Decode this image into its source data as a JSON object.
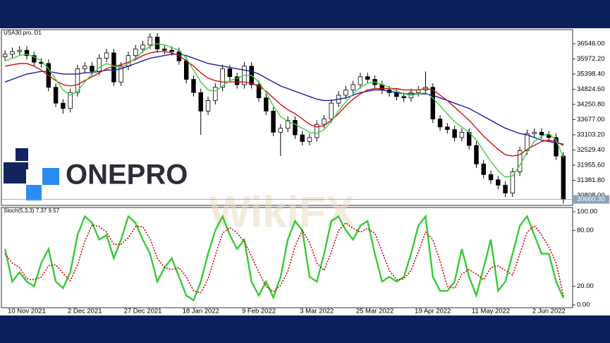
{
  "brand": {
    "logo_text": "ONEPRO",
    "watermark": "WikiFX"
  },
  "chart_data": [
    {
      "type": "candlestick",
      "title": "USA30.pro, D1",
      "up_color": "#ffffff",
      "down_color": "#000000",
      "open": [
        36050,
        36150,
        36250,
        36300,
        36100,
        35850,
        35800,
        34900,
        34300,
        34100,
        34700,
        35600,
        35700,
        35500,
        36000,
        36200,
        35100,
        35700,
        36100,
        36350,
        36500,
        36800,
        36350,
        36300,
        36250,
        35900,
        35200,
        34700,
        34000,
        34400,
        34900,
        35600,
        35300,
        35000,
        35700,
        35000,
        34500,
        34000,
        33200,
        33350,
        33650,
        33100,
        32850,
        33000,
        33500,
        33700,
        34300,
        34600,
        34800,
        35000,
        35300,
        35200,
        35000,
        34800,
        34700,
        34550,
        34500,
        34700,
        34800,
        34900,
        33700,
        33400,
        33300,
        33000,
        33200,
        32700,
        32000,
        31600,
        31400,
        31200,
        30900,
        31700,
        32500,
        33150,
        33200,
        33100,
        33000,
        32300
      ],
      "high": [
        36300,
        36400,
        36450,
        36450,
        36250,
        36000,
        35950,
        35050,
        34450,
        34850,
        35750,
        35850,
        35850,
        36150,
        36350,
        36350,
        35850,
        36250,
        36500,
        36650,
        36950,
        36950,
        36500,
        36450,
        36400,
        36050,
        35350,
        34850,
        34550,
        35050,
        35750,
        35750,
        35450,
        35850,
        35850,
        35150,
        34650,
        34150,
        33500,
        33800,
        33800,
        33250,
        33150,
        33650,
        33850,
        34450,
        34750,
        34950,
        35150,
        35450,
        35450,
        35350,
        35150,
        34950,
        34850,
        34700,
        34850,
        34950,
        35500,
        35050,
        33850,
        33550,
        33450,
        33350,
        33350,
        32850,
        32150,
        31750,
        31550,
        31350,
        31850,
        32650,
        33300,
        33350,
        33350,
        33250,
        33150,
        32450
      ],
      "low": [
        35900,
        36000,
        36100,
        35950,
        35700,
        35650,
        34750,
        34150,
        33900,
        33950,
        34550,
        35450,
        35350,
        35350,
        35850,
        34950,
        34950,
        35550,
        35950,
        36200,
        36350,
        36200,
        36150,
        36100,
        35750,
        35050,
        34550,
        33100,
        33850,
        34250,
        34750,
        35150,
        34850,
        34850,
        34850,
        34350,
        33850,
        33050,
        32300,
        33200,
        32950,
        32700,
        32700,
        32850,
        33350,
        33550,
        34150,
        34450,
        34650,
        34850,
        35050,
        34850,
        34650,
        34550,
        34400,
        34350,
        34350,
        34550,
        34650,
        33550,
        33250,
        33150,
        32850,
        32850,
        32550,
        31850,
        31450,
        31250,
        31050,
        30750,
        30750,
        31550,
        32350,
        33000,
        32950,
        32850,
        32150,
        30500
      ],
      "close": [
        36150,
        36250,
        36300,
        36100,
        35850,
        35800,
        34900,
        34300,
        34100,
        34700,
        35600,
        35700,
        35500,
        36000,
        36200,
        35100,
        35700,
        36100,
        36350,
        36500,
        36800,
        36350,
        36300,
        36250,
        35900,
        35200,
        34700,
        34000,
        34400,
        34900,
        35600,
        35300,
        35000,
        35700,
        35000,
        34500,
        34000,
        33200,
        33350,
        33650,
        33100,
        32850,
        33000,
        33500,
        33700,
        34300,
        34600,
        34800,
        35000,
        35300,
        35200,
        35000,
        34800,
        34700,
        34550,
        34500,
        34700,
        34800,
        34900,
        33700,
        33400,
        33300,
        33000,
        33200,
        32700,
        32000,
        31600,
        31400,
        31200,
        30900,
        31700,
        32500,
        33150,
        33200,
        33100,
        33000,
        32300,
        30660
      ],
      "series": [
        {
          "color": "#1a1aa6",
          "values": [
            35100,
            35200,
            35300,
            35400,
            35450,
            35500,
            35500,
            35450,
            35400,
            35400,
            35400,
            35450,
            35450,
            35500,
            35550,
            35550,
            35600,
            35700,
            35800,
            35900,
            36000,
            36050,
            36100,
            36150,
            36150,
            36100,
            36000,
            35900,
            35800,
            35750,
            35700,
            35650,
            35600,
            35550,
            35500,
            35400,
            35250,
            35100,
            34950,
            34850,
            34750,
            34650,
            34550,
            34450,
            34400,
            34400,
            34450,
            34500,
            34600,
            34700,
            34750,
            34800,
            34800,
            34750,
            34700,
            34650,
            34650,
            34650,
            34650,
            34600,
            34500,
            34400,
            34300,
            34200,
            34100,
            33950,
            33800,
            33650,
            33500,
            33350,
            33250,
            33150,
            33100,
            33000,
            32900,
            32850,
            32800,
            32750
          ]
        },
        {
          "color": "#d01010",
          "values": [
            35700,
            35750,
            35800,
            35800,
            35700,
            35550,
            35350,
            35150,
            35000,
            34950,
            35000,
            35150,
            35300,
            35450,
            35600,
            35700,
            35750,
            35850,
            35950,
            36100,
            36200,
            36250,
            36250,
            36200,
            36100,
            35900,
            35700,
            35450,
            35250,
            35150,
            35100,
            35100,
            35100,
            35100,
            35050,
            34950,
            34750,
            34500,
            34250,
            34050,
            33900,
            33700,
            33500,
            33400,
            33450,
            33650,
            33900,
            34200,
            34450,
            34650,
            34800,
            34850,
            34850,
            34850,
            34850,
            34800,
            34800,
            34800,
            34850,
            34800,
            34600,
            34400,
            34150,
            33900,
            33650,
            33350,
            33050,
            32800,
            32550,
            32350,
            32300,
            32350,
            32550,
            32700,
            32850,
            32900,
            32850,
            32700
          ]
        },
        {
          "color": "#44cc44",
          "values": [
            35900,
            36000,
            36100,
            36150,
            36050,
            35900,
            35600,
            35200,
            34800,
            34600,
            34750,
            35100,
            35400,
            35650,
            35800,
            35700,
            35650,
            35800,
            36000,
            36250,
            36450,
            36550,
            36500,
            36400,
            36300,
            36000,
            35550,
            35100,
            34800,
            34750,
            34950,
            35150,
            35250,
            35350,
            35350,
            35100,
            34700,
            34200,
            33800,
            33600,
            33500,
            33350,
            33200,
            33150,
            33300,
            33600,
            34000,
            34350,
            34650,
            34900,
            35050,
            35100,
            35000,
            34900,
            34750,
            34650,
            34600,
            34650,
            34700,
            34500,
            34200,
            33900,
            33600,
            33400,
            33200,
            32900,
            32500,
            32100,
            31750,
            31500,
            31550,
            31950,
            32450,
            32850,
            33050,
            33150,
            32900,
            32250
          ]
        }
      ],
      "ylim": [
        30434,
        37080
      ],
      "yticks": [
        {
          "value": 36546,
          "label": "36546.00"
        },
        {
          "value": 35972.2,
          "label": "35972.20"
        },
        {
          "value": 35398.4,
          "label": "35398.40"
        },
        {
          "value": 34824.6,
          "label": "34824.60"
        },
        {
          "value": 34250.8,
          "label": "34250.80"
        },
        {
          "value": 33677,
          "label": "33677.00"
        },
        {
          "value": 33103.2,
          "label": "33103.20"
        },
        {
          "value": 32529.4,
          "label": "32529.40"
        },
        {
          "value": 31955.6,
          "label": "31955.60"
        },
        {
          "value": 31381.8,
          "label": "31381.80"
        },
        {
          "value": 30808,
          "label": "30808.00"
        }
      ],
      "last_price": {
        "value": 30660.3,
        "label": "30660.30"
      }
    },
    {
      "type": "line",
      "title": "Stoch(5,3,3) 7.37 9.57",
      "categories": [
        null,
        null,
        null,
        "10 Nov 2021",
        null,
        null,
        null,
        null,
        null,
        null,
        null,
        "2 Dec 2021",
        null,
        null,
        null,
        null,
        null,
        null,
        null,
        "27 Dec 2021",
        null,
        null,
        null,
        null,
        null,
        null,
        null,
        "18 Jan 2022",
        null,
        null,
        null,
        null,
        null,
        null,
        null,
        "9 Feb 2022",
        null,
        null,
        null,
        null,
        null,
        null,
        null,
        "3 Mar 2022",
        null,
        null,
        null,
        null,
        null,
        null,
        null,
        "25 Mar 2022",
        null,
        null,
        null,
        null,
        null,
        null,
        null,
        "19 Apr 2022",
        null,
        null,
        null,
        null,
        null,
        null,
        null,
        "11 May 2022",
        null,
        null,
        null,
        null,
        null,
        null,
        null,
        "2 Jun 2022",
        null,
        null
      ],
      "series": [
        {
          "color": "#33cc33",
          "values": [
            60,
            25,
            35,
            25,
            20,
            45,
            60,
            25,
            18,
            35,
            75,
            95,
            88,
            70,
            75,
            50,
            70,
            95,
            88,
            70,
            55,
            25,
            40,
            50,
            30,
            10,
            5,
            25,
            55,
            80,
            95,
            75,
            60,
            70,
            25,
            10,
            25,
            8,
            30,
            70,
            90,
            80,
            30,
            25,
            55,
            90,
            95,
            80,
            70,
            85,
            90,
            55,
            25,
            30,
            25,
            30,
            55,
            85,
            95,
            30,
            15,
            15,
            25,
            60,
            30,
            10,
            40,
            70,
            15,
            25,
            55,
            85,
            95,
            75,
            55,
            55,
            25,
            7.37
          ]
        },
        {
          "color": "#cc0000",
          "dashed": true,
          "values": [
            55,
            45,
            40,
            28,
            27,
            30,
            42,
            43,
            34,
            26,
            43,
            68,
            86,
            84,
            78,
            65,
            65,
            72,
            84,
            84,
            71,
            50,
            40,
            38,
            40,
            30,
            15,
            13,
            28,
            53,
            77,
            83,
            77,
            68,
            52,
            35,
            20,
            14,
            21,
            36,
            63,
            80,
            67,
            45,
            37,
            57,
            80,
            88,
            82,
            78,
            82,
            77,
            57,
            37,
            27,
            28,
            37,
            57,
            78,
            70,
            47,
            20,
            18,
            33,
            38,
            33,
            27,
            40,
            42,
            37,
            32,
            55,
            78,
            85,
            75,
            62,
            45,
            9.57
          ]
        }
      ],
      "ylim": [
        -3,
        104.5
      ],
      "yticks": [
        {
          "value": 100,
          "label": "100.00"
        },
        {
          "value": 80,
          "label": "80.00"
        },
        {
          "value": 20,
          "label": "20.00"
        },
        {
          "value": 0,
          "label": "0.00"
        }
      ]
    }
  ]
}
